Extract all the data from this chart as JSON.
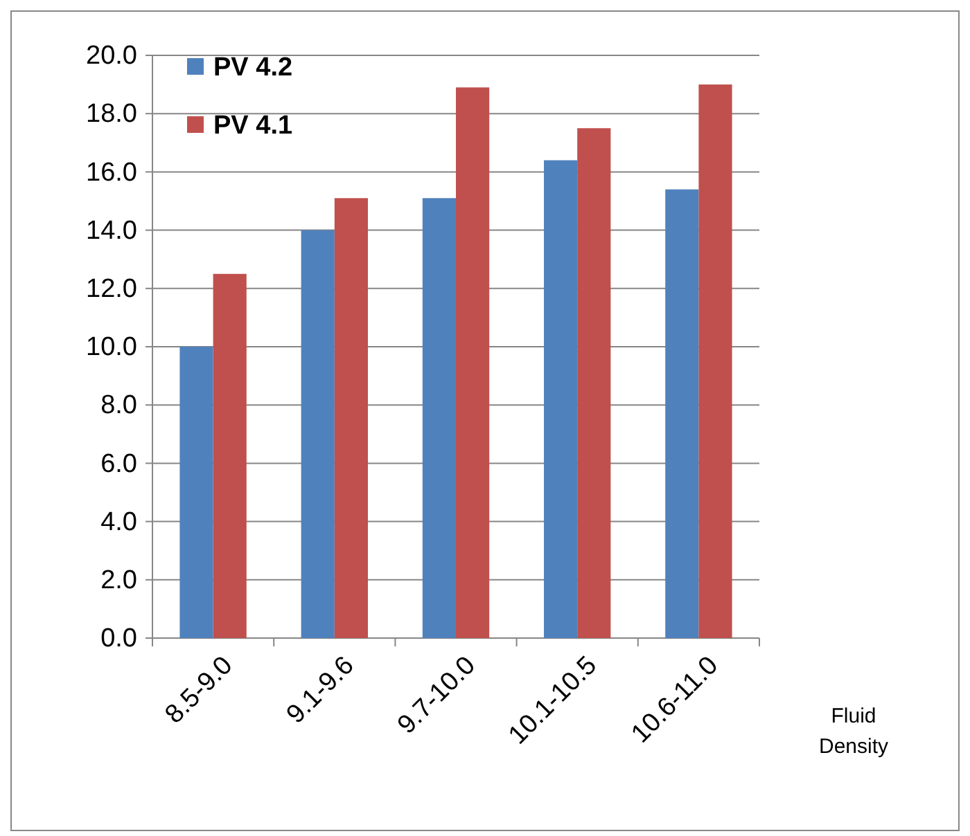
{
  "chart_data": {
    "type": "bar",
    "xlabel": "Fluid Density",
    "categories": [
      "8.5-9.0",
      "9.1-9.6",
      "9.7-10.0",
      "10.1-10.5",
      "10.6-11.0"
    ],
    "series": [
      {
        "name": "PV 4.2",
        "color": "#4f81bd",
        "values": [
          10.0,
          14.0,
          15.1,
          16.4,
          15.4
        ]
      },
      {
        "name": "PV 4.1",
        "color": "#c0504d",
        "values": [
          12.5,
          15.1,
          18.9,
          17.5,
          19.0
        ]
      }
    ],
    "ylim": [
      0,
      20
    ],
    "yticks": [
      {
        "value": 0,
        "label": "0.0"
      },
      {
        "value": 2,
        "label": "2.0"
      },
      {
        "value": 4,
        "label": "4.0"
      },
      {
        "value": 6,
        "label": "6.0"
      },
      {
        "value": 8,
        "label": "8.0"
      },
      {
        "value": 10,
        "label": "10.0"
      },
      {
        "value": 12,
        "label": "12.0"
      },
      {
        "value": 14,
        "label": "14.0"
      },
      {
        "value": 16,
        "label": "16.0"
      },
      {
        "value": 18,
        "label": "18.0"
      },
      {
        "value": 20,
        "label": "20.0"
      }
    ],
    "grid": "y",
    "legend": "top left"
  }
}
